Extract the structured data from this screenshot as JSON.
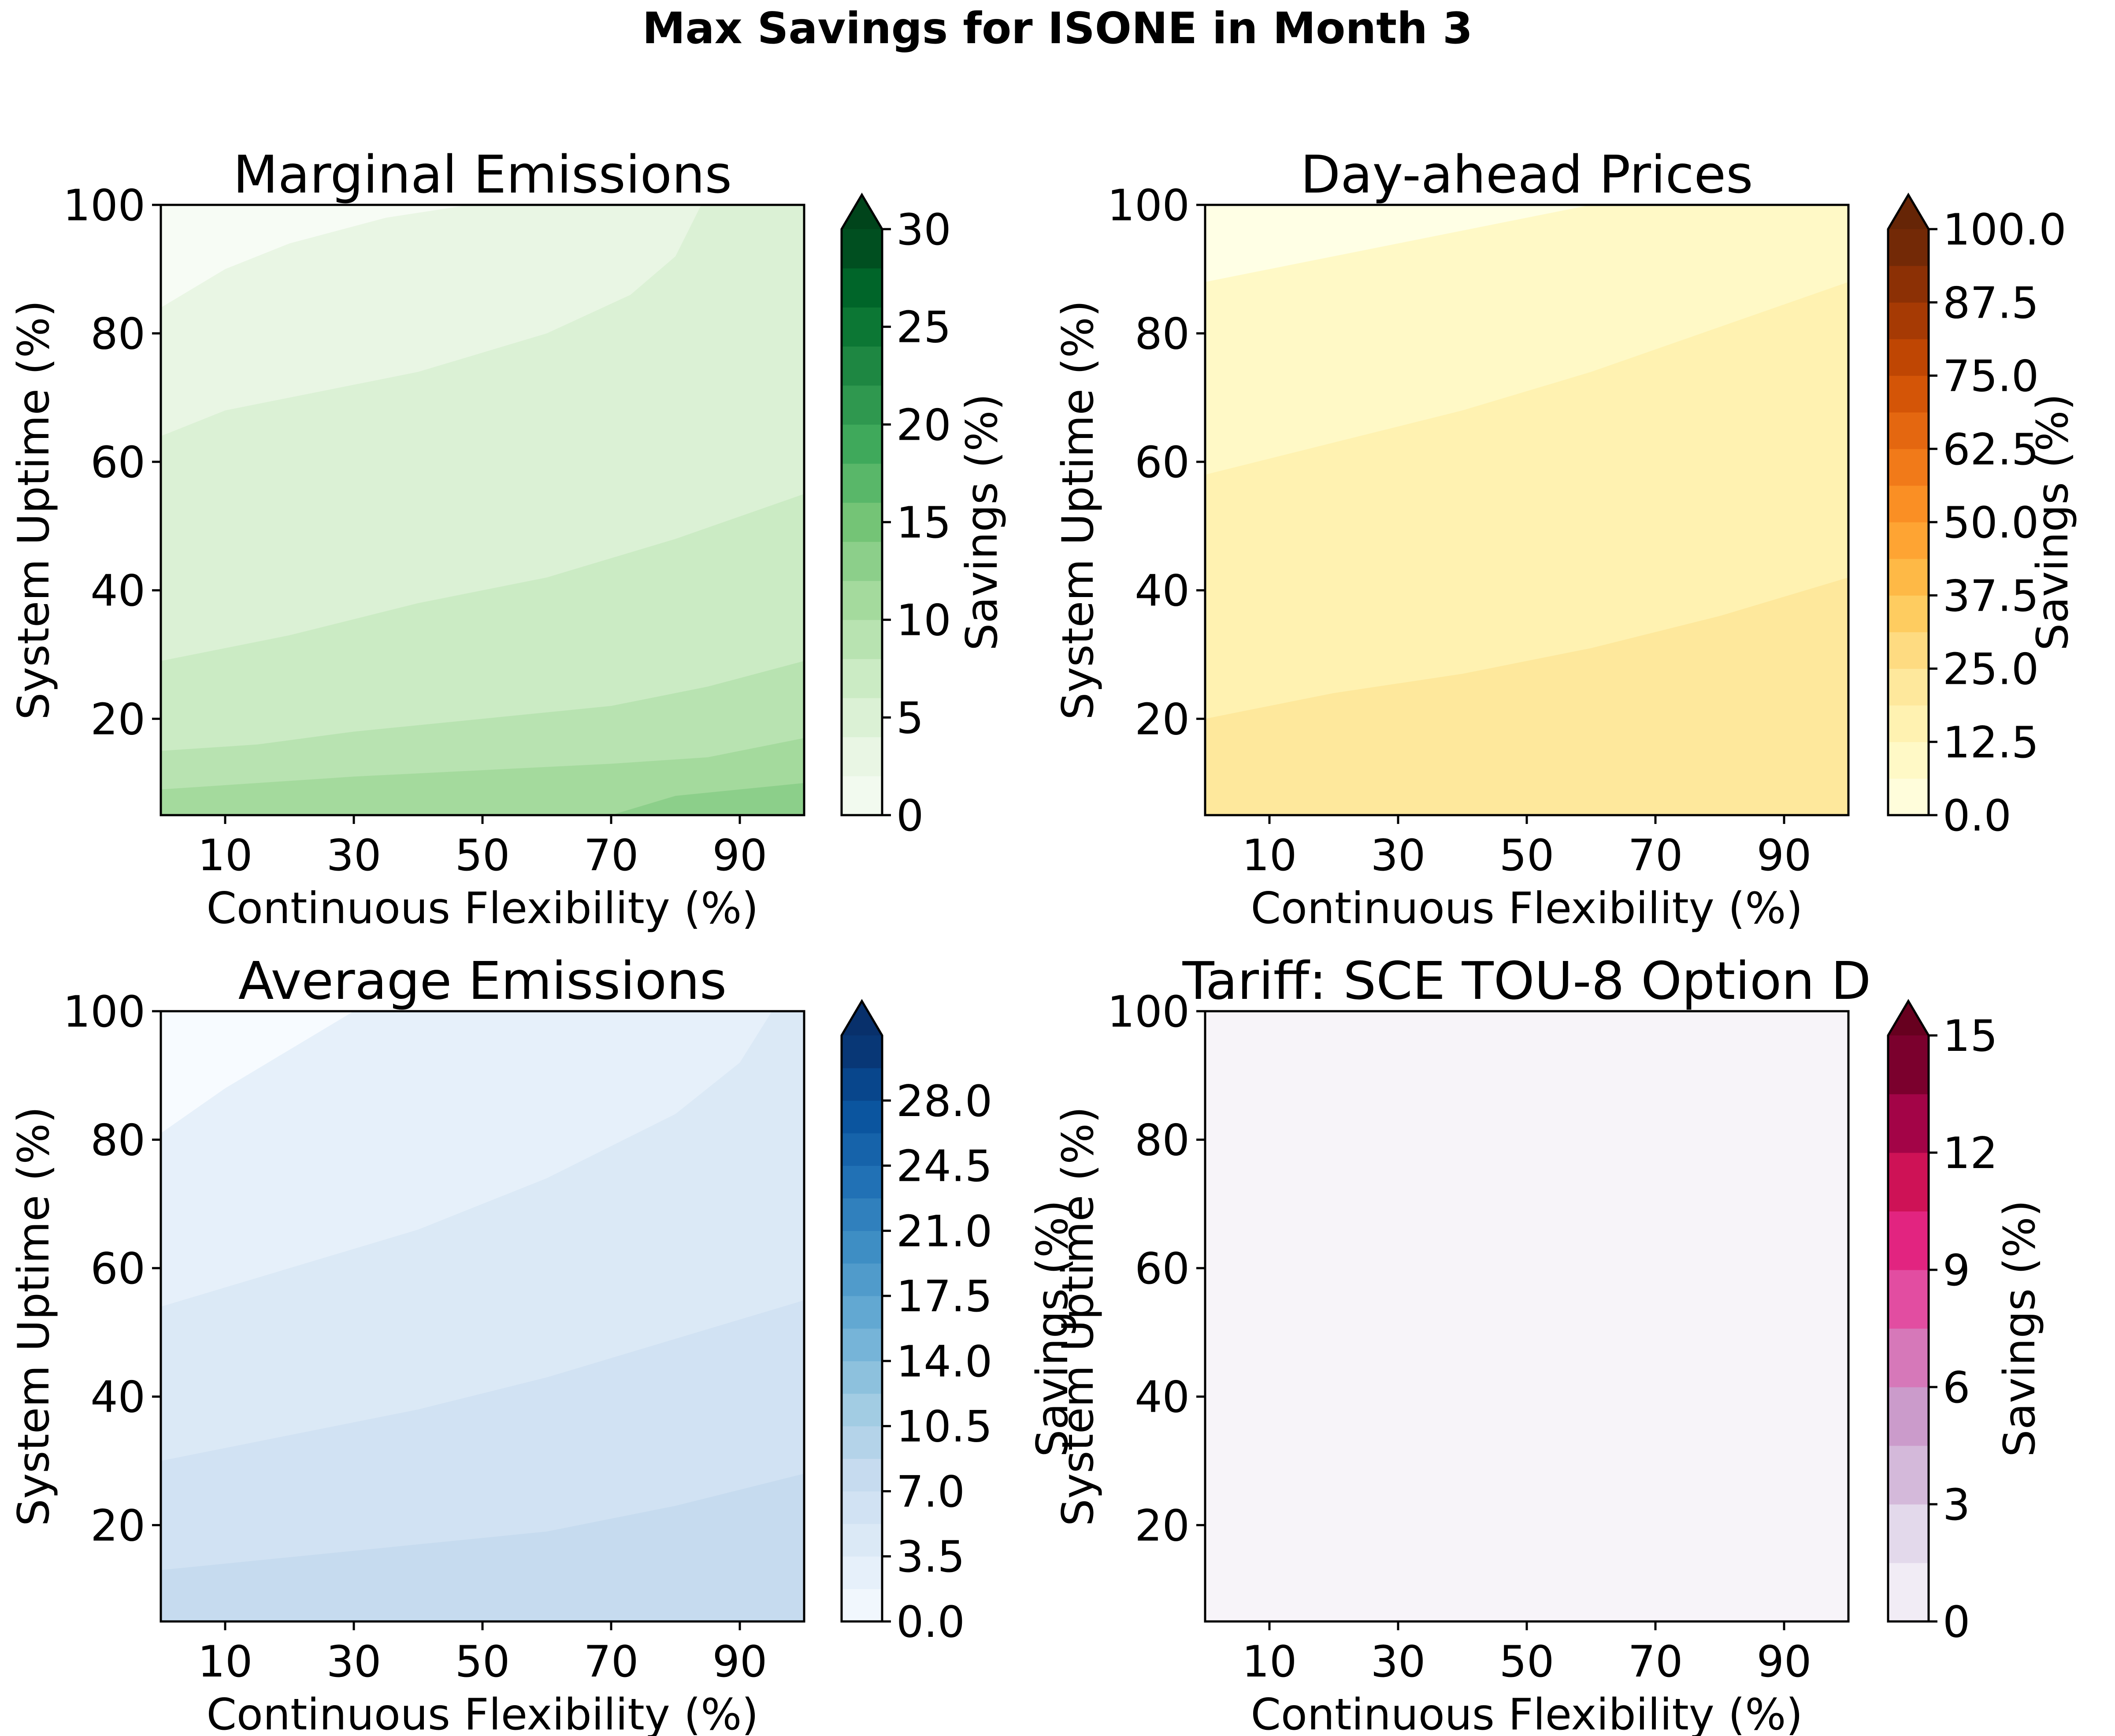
{
  "figure": {
    "title": "Max Savings for ISONE in Month 3"
  },
  "chart_data": [
    {
      "type": "contour",
      "title": "Marginal Emissions",
      "xlabel": "Continuous Flexibility (%)",
      "ylabel": "System Uptime (%)",
      "xlim": [
        0,
        100
      ],
      "ylim": [
        5,
        100
      ],
      "xticks": [
        "10",
        "30",
        "50",
        "70",
        "90"
      ],
      "yticks": [
        "20",
        "40",
        "60",
        "80",
        "100"
      ],
      "colorbar": {
        "label": "Savings (%)",
        "colormap": "Greens",
        "range": [
          0,
          30
        ],
        "levels": 15,
        "extend": "max",
        "ticks": [
          "0",
          "5",
          "10",
          "15",
          "20",
          "25",
          "30"
        ]
      },
      "contour_boundaries": [
        {
          "level": 2,
          "x": [
            0,
            10,
            20,
            35,
            48
          ],
          "y": [
            84,
            90,
            94,
            98,
            100
          ]
        },
        {
          "level": 4,
          "x": [
            0,
            10,
            20,
            40,
            60,
            73,
            80,
            84
          ],
          "y": [
            64,
            68,
            70,
            74,
            80,
            86,
            92,
            100
          ]
        },
        {
          "level": 6,
          "x": [
            0,
            10,
            20,
            40,
            60,
            80,
            100
          ],
          "y": [
            29,
            31,
            33,
            38,
            42,
            48,
            55
          ]
        },
        {
          "level": 8,
          "x": [
            0,
            15,
            30,
            50,
            70,
            85,
            100
          ],
          "y": [
            15,
            16,
            18,
            20,
            22,
            25,
            29
          ]
        },
        {
          "level": 10,
          "x": [
            0,
            15,
            30,
            50,
            70,
            85,
            100
          ],
          "y": [
            9,
            10,
            11,
            12,
            13,
            14,
            17
          ]
        },
        {
          "level": 12,
          "x": [
            70,
            80,
            90,
            100
          ],
          "y": [
            5,
            8,
            9,
            10
          ]
        }
      ]
    },
    {
      "type": "contour",
      "title": "Day-ahead Prices",
      "xlabel": "Continuous Flexibility (%)",
      "ylabel": "System Uptime (%)",
      "xlim": [
        0,
        100
      ],
      "ylim": [
        5,
        100
      ],
      "xticks": [
        "10",
        "30",
        "50",
        "70",
        "90"
      ],
      "yticks": [
        "20",
        "40",
        "60",
        "80",
        "100"
      ],
      "colorbar": {
        "label": "Savings (%)",
        "colormap": "YlOrBr",
        "range": [
          0,
          100
        ],
        "levels": 16,
        "extend": "max",
        "ticks": [
          "0.0",
          "12.5",
          "25.0",
          "37.5",
          "50.0",
          "62.5",
          "75.0",
          "87.5",
          "100.0"
        ]
      },
      "contour_boundaries": [
        {
          "level": 6.25,
          "x": [
            0,
            20,
            40,
            60
          ],
          "y": [
            88,
            92,
            96,
            100
          ]
        },
        {
          "level": 12.5,
          "x": [
            0,
            20,
            40,
            60,
            80,
            100
          ],
          "y": [
            58,
            63,
            68,
            74,
            81,
            88
          ]
        },
        {
          "level": 18.75,
          "x": [
            0,
            20,
            40,
            60,
            80,
            100
          ],
          "y": [
            20,
            24,
            27,
            31,
            36,
            42
          ]
        }
      ]
    },
    {
      "type": "contour",
      "title": "Average Emissions",
      "xlabel": "Continuous Flexibility (%)",
      "ylabel": "System Uptime (%)",
      "xlim": [
        0,
        100
      ],
      "ylim": [
        5,
        100
      ],
      "xticks": [
        "10",
        "30",
        "50",
        "70",
        "90"
      ],
      "yticks": [
        "20",
        "40",
        "60",
        "80",
        "100"
      ],
      "colorbar": {
        "label": "Savings (%)",
        "colormap": "Blues",
        "range": [
          0,
          31.5
        ],
        "levels": 18,
        "extend": "max",
        "ticks": [
          "0.0",
          "3.5",
          "7.0",
          "10.5",
          "14.0",
          "17.5",
          "21.0",
          "24.5",
          "28.0"
        ]
      },
      "contour_boundaries": [
        {
          "level": 1.75,
          "x": [
            0,
            10,
            20,
            30
          ],
          "y": [
            81,
            88,
            94,
            100
          ]
        },
        {
          "level": 3.5,
          "x": [
            0,
            20,
            40,
            60,
            80,
            90,
            95
          ],
          "y": [
            54,
            60,
            66,
            74,
            84,
            92,
            100
          ]
        },
        {
          "level": 5.25,
          "x": [
            0,
            20,
            40,
            60,
            80,
            100
          ],
          "y": [
            30,
            34,
            38,
            43,
            49,
            55
          ]
        },
        {
          "level": 7.0,
          "x": [
            0,
            20,
            40,
            60,
            80,
            100
          ],
          "y": [
            13,
            15,
            17,
            19,
            23,
            28
          ]
        }
      ]
    },
    {
      "type": "contour",
      "title": "Tariff: SCE TOU-8 Option D",
      "xlabel": "Continuous Flexibility (%)",
      "ylabel": "System Uptime (%)",
      "xlim": [
        0,
        100
      ],
      "ylim": [
        5,
        100
      ],
      "xticks": [
        "10",
        "30",
        "50",
        "70",
        "90"
      ],
      "yticks": [
        "20",
        "40",
        "60",
        "80",
        "100"
      ],
      "colorbar": {
        "label": "Savings (%)",
        "colormap": "PuRd",
        "range": [
          0,
          15
        ],
        "levels": 10,
        "extend": "max",
        "ticks": [
          "0",
          "3",
          "6",
          "9",
          "12",
          "15"
        ]
      },
      "contour_boundaries": []
    }
  ]
}
